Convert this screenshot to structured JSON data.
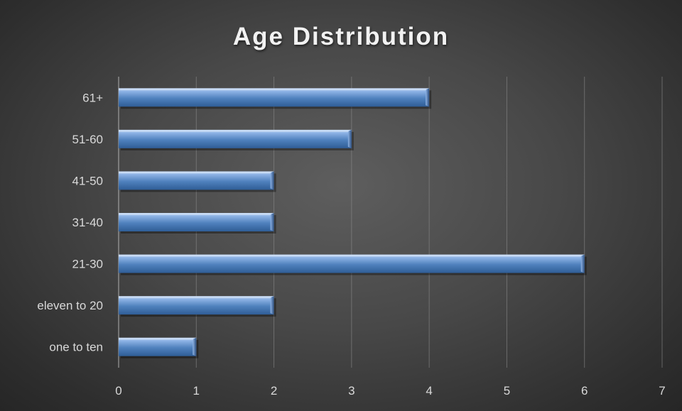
{
  "chart_data": {
    "type": "bar",
    "orientation": "horizontal",
    "title": "Age Distribution",
    "categories": [
      "one to ten",
      "eleven to 20",
      "21-30",
      "31-40",
      "41-50",
      "51-60",
      "61+"
    ],
    "values": [
      1,
      2,
      6,
      2,
      2,
      3,
      4
    ],
    "xlim": [
      0,
      7
    ],
    "xticks": [
      0,
      1,
      2,
      3,
      4,
      5,
      6,
      7
    ],
    "grid": true,
    "legend": "none",
    "bar_color": "#4f81bd"
  }
}
